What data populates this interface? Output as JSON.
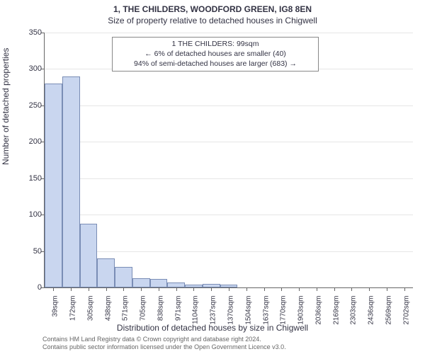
{
  "title": "1, THE CHILDERS, WOODFORD GREEN, IG8 8EN",
  "subtitle": "Size of property relative to detached houses in Chigwell",
  "ylabel": "Number of detached properties",
  "xlabel": "Distribution of detached houses by size in Chigwell",
  "chart": {
    "type": "histogram",
    "bar_fill": "#c9d6ef",
    "bar_stroke": "#7a8db5",
    "background": "#ffffff",
    "grid_color": "#e6e6e6",
    "axis_color": "#666666",
    "text_color": "#333344",
    "ylim": [
      0,
      350
    ],
    "ytick_step": 50,
    "yticks": [
      0,
      50,
      100,
      150,
      200,
      250,
      300,
      350
    ],
    "xticks": [
      "39sqm",
      "172sqm",
      "305sqm",
      "438sqm",
      "571sqm",
      "705sqm",
      "838sqm",
      "971sqm",
      "1104sqm",
      "1237sqm",
      "1370sqm",
      "1504sqm",
      "1637sqm",
      "1770sqm",
      "1903sqm",
      "2036sqm",
      "2169sqm",
      "2303sqm",
      "2436sqm",
      "2569sqm",
      "2702sqm"
    ],
    "bars": [
      280,
      290,
      88,
      40,
      28,
      13,
      12,
      7,
      4,
      5,
      4,
      0,
      0,
      0,
      0,
      0,
      0,
      0,
      0,
      0,
      0
    ]
  },
  "annotation": {
    "line1": "1 THE CHILDERS: 99sqm",
    "line2": "← 6% of detached houses are smaller (40)",
    "line3": "94% of semi-detached houses are larger (683) →"
  },
  "footer": {
    "line1": "Contains HM Land Registry data © Crown copyright and database right 2024.",
    "line2": "Contains public sector information licensed under the Open Government Licence v3.0."
  }
}
